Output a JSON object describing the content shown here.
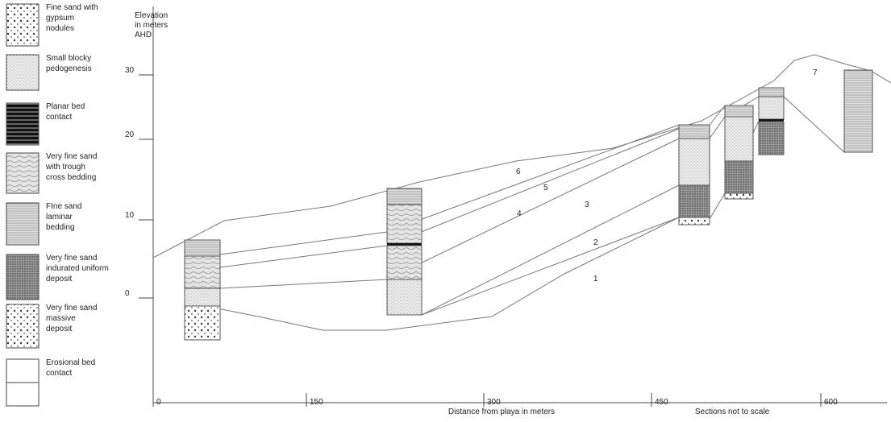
{
  "legend": [
    {
      "lines": [
        "Fine sand with",
        "gypsum",
        "nodules"
      ]
    },
    {
      "lines": [
        "Small blocky",
        " pedogenesis"
      ]
    },
    {
      "lines": [
        "Planar bed",
        "contact"
      ]
    },
    {
      "lines": [
        "Very fine sand",
        "with trough",
        "cross bedding"
      ]
    },
    {
      "lines": [
        "FIne sand",
        "laminar",
        "bedding"
      ]
    },
    {
      "lines": [
        "Very fine sand",
        "indurated uniform",
        "deposit"
      ]
    },
    {
      "lines": [
        "Very fine sand",
        "massive",
        "deposit"
      ]
    },
    {
      "lines": [
        "Erosional bed",
        "contact"
      ]
    }
  ],
  "y_axis": {
    "title": [
      "Elevation",
      "in meters",
      "AHD"
    ],
    "ticks": [
      "30",
      "20",
      "10",
      "0"
    ]
  },
  "x_axis": {
    "title": "Distance from playa in meters",
    "ticks": [
      "0",
      "150",
      "300",
      "450",
      "600"
    ],
    "note": "Sections not to scale"
  },
  "units": [
    "1",
    "2",
    "3",
    "4",
    "5",
    "6",
    "7"
  ]
}
